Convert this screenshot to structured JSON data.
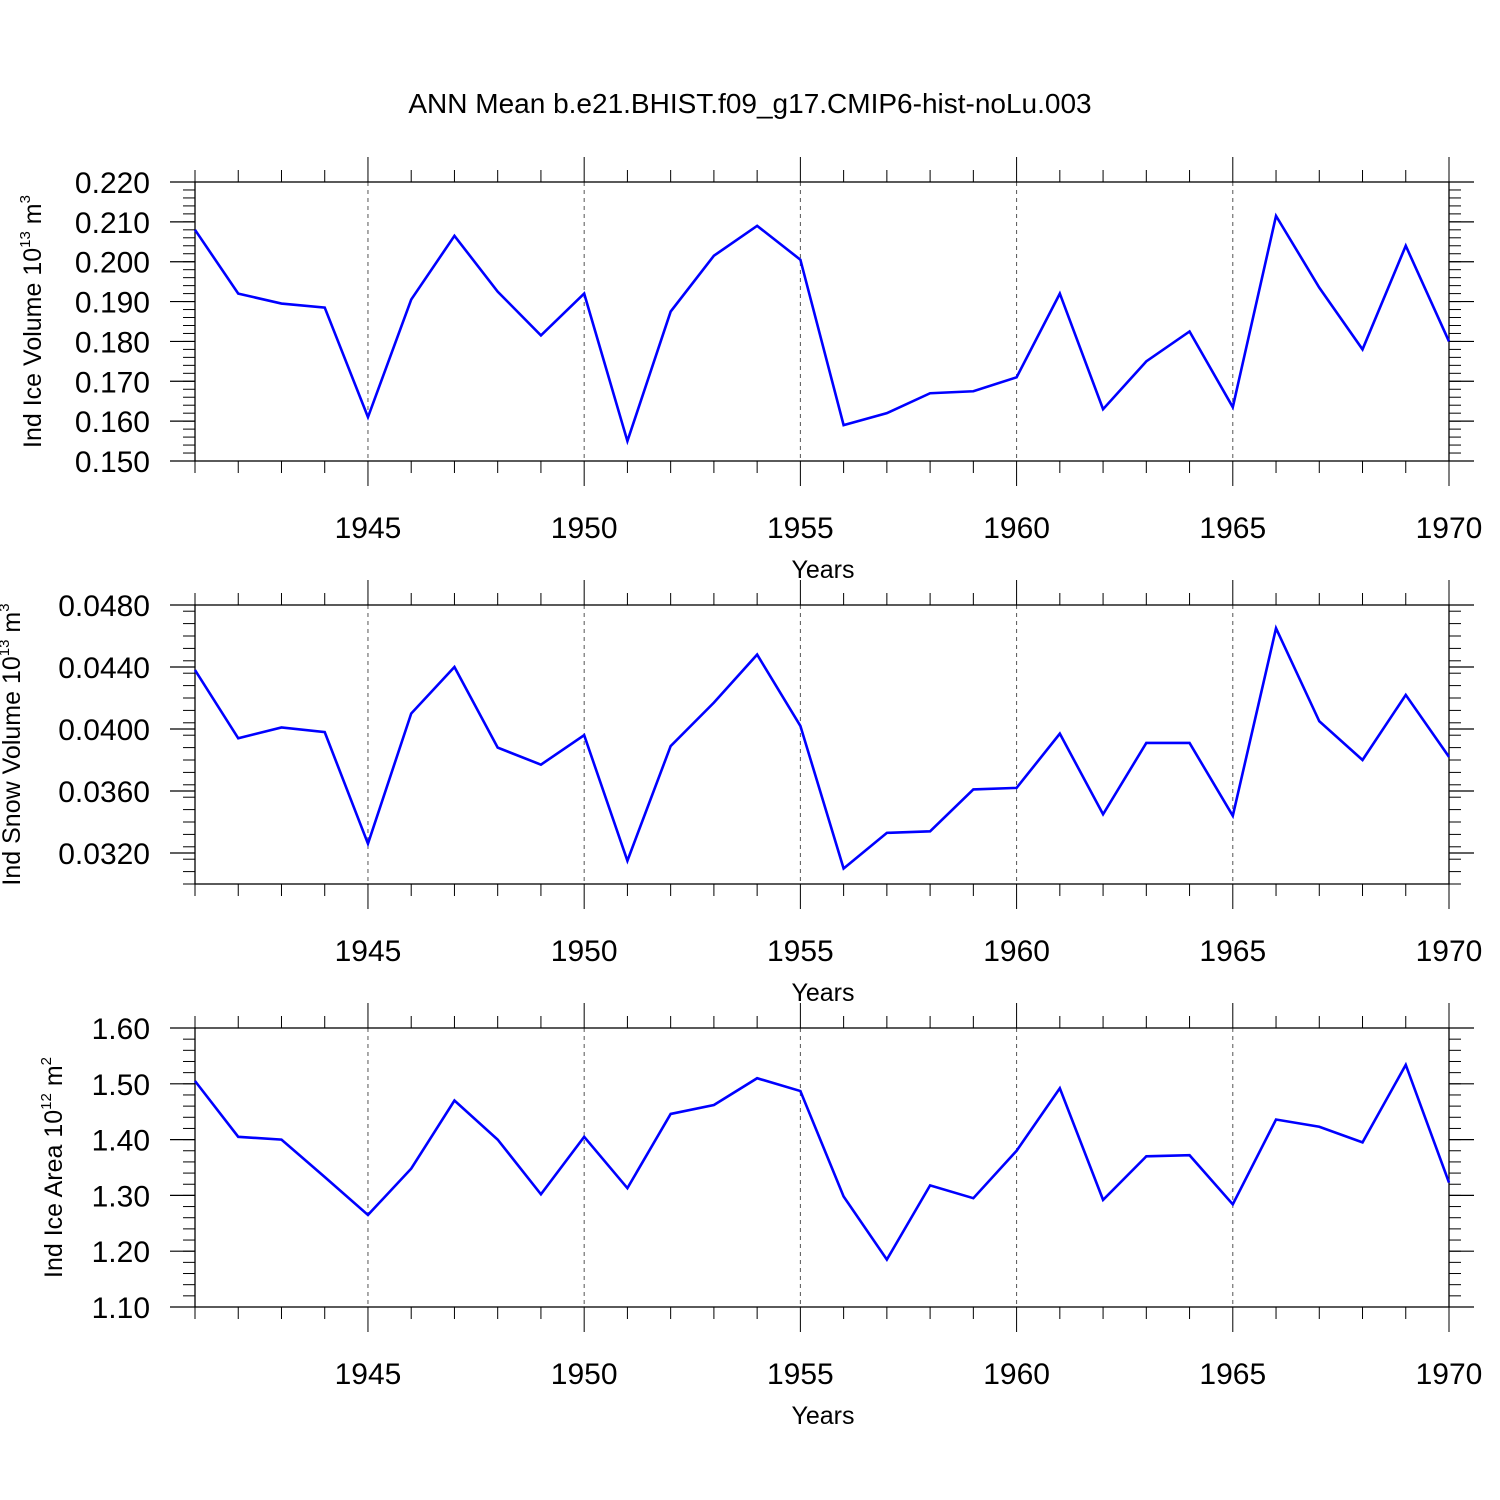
{
  "title": "ANN Mean b.e21.BHIST.f09_g17.CMIP6-hist-noLu.003",
  "line_color": "#0000ff",
  "chart_data": [
    {
      "type": "line",
      "xlabel": "Years",
      "ylabel": {
        "main": "Ind Ice Volume 10",
        "exp": "13",
        "unit_base": " m",
        "unit_exp": "3"
      },
      "xlim": [
        1941,
        1970
      ],
      "ylim": [
        0.15,
        0.22
      ],
      "x_ticks": [
        "1945",
        "1950",
        "1955",
        "1960",
        "1965",
        "1970"
      ],
      "y_ticks": [
        "0.150",
        "0.160",
        "0.170",
        "0.180",
        "0.190",
        "0.200",
        "0.210",
        "0.220"
      ],
      "x": [
        1941,
        1942,
        1943,
        1944,
        1945,
        1946,
        1947,
        1948,
        1949,
        1950,
        1951,
        1952,
        1953,
        1954,
        1955,
        1956,
        1957,
        1958,
        1959,
        1960,
        1961,
        1962,
        1963,
        1964,
        1965,
        1966,
        1967,
        1968,
        1969,
        1970
      ],
      "values": [
        0.208,
        0.192,
        0.1895,
        0.1885,
        0.161,
        0.1905,
        0.2065,
        0.1925,
        0.1815,
        0.192,
        0.155,
        0.1875,
        0.2015,
        0.209,
        0.2005,
        0.159,
        0.162,
        0.167,
        0.1675,
        0.171,
        0.192,
        0.163,
        0.175,
        0.1825,
        0.1635,
        0.2115,
        0.1935,
        0.178,
        0.204,
        0.18
      ]
    },
    {
      "type": "line",
      "xlabel": "Years",
      "ylabel": {
        "main": "Ind Snow Volume 10",
        "exp": "13",
        "unit_base": " m",
        "unit_exp": "3"
      },
      "xlim": [
        1941,
        1970
      ],
      "ylim": [
        0.03,
        0.048
      ],
      "x_ticks": [
        "1945",
        "1950",
        "1955",
        "1960",
        "1965",
        "1970"
      ],
      "y_ticks": [
        "0.0320",
        "0.0360",
        "0.0400",
        "0.0440",
        "0.0480"
      ],
      "x": [
        1941,
        1942,
        1943,
        1944,
        1945,
        1946,
        1947,
        1948,
        1949,
        1950,
        1951,
        1952,
        1953,
        1954,
        1955,
        1956,
        1957,
        1958,
        1959,
        1960,
        1961,
        1962,
        1963,
        1964,
        1965,
        1966,
        1967,
        1968,
        1969,
        1970
      ],
      "values": [
        0.0438,
        0.0394,
        0.0401,
        0.0398,
        0.0326,
        0.041,
        0.044,
        0.0388,
        0.0377,
        0.0396,
        0.0315,
        0.0389,
        0.0417,
        0.0448,
        0.0402,
        0.031,
        0.0333,
        0.0334,
        0.0361,
        0.0362,
        0.0397,
        0.0345,
        0.0391,
        0.0391,
        0.0344,
        0.0465,
        0.0405,
        0.038,
        0.0422,
        0.0382
      ]
    },
    {
      "type": "line",
      "xlabel": "Years",
      "ylabel": {
        "main": "Ind Ice Area 10",
        "exp": "12",
        "unit_base": " m",
        "unit_exp": "2"
      },
      "xlim": [
        1941,
        1970
      ],
      "ylim": [
        1.1,
        1.6
      ],
      "x_ticks": [
        "1945",
        "1950",
        "1955",
        "1960",
        "1965",
        "1970"
      ],
      "y_ticks": [
        "1.10",
        "1.20",
        "1.30",
        "1.40",
        "1.50",
        "1.60"
      ],
      "x": [
        1941,
        1942,
        1943,
        1944,
        1945,
        1946,
        1947,
        1948,
        1949,
        1950,
        1951,
        1952,
        1953,
        1954,
        1955,
        1956,
        1957,
        1958,
        1959,
        1960,
        1961,
        1962,
        1963,
        1964,
        1965,
        1966,
        1967,
        1968,
        1969,
        1970
      ],
      "values": [
        1.505,
        1.405,
        1.4,
        1.333,
        1.265,
        1.348,
        1.47,
        1.4,
        1.302,
        1.405,
        1.313,
        1.446,
        1.462,
        1.51,
        1.487,
        1.298,
        1.185,
        1.318,
        1.295,
        1.38,
        1.492,
        1.292,
        1.37,
        1.372,
        1.284,
        1.436,
        1.423,
        1.395,
        1.534,
        1.323
      ]
    }
  ]
}
